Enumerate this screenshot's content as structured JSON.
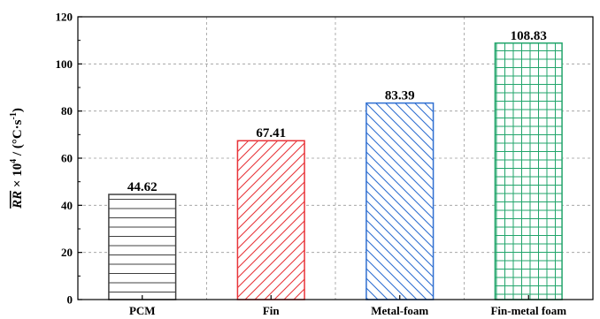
{
  "chart_data": {
    "type": "bar",
    "categories": [
      "PCM",
      "Fin",
      "Metal-foam",
      "Fin-metal foam"
    ],
    "values": [
      44.62,
      67.41,
      83.39,
      108.83
    ],
    "value_labels": [
      "44.62",
      "67.41",
      "83.39",
      "108.83"
    ],
    "ylabel": {
      "main": "RR",
      "times": " × 10",
      "exp": "4",
      "unit_a": " / (°C·s",
      "unit_exp": "-1",
      "unit_b": ")"
    },
    "ylim": [
      0,
      120
    ],
    "yticks": [
      0,
      20,
      40,
      60,
      80,
      100,
      120
    ],
    "grid": true,
    "bar_colors": [
      "#404040",
      "#e8353a",
      "#2f6fd1",
      "#22a56b"
    ],
    "bar_patterns": [
      "horizontal-lines",
      "diagonal-hatch",
      "diagonal-hatch-reverse",
      "grid"
    ]
  }
}
